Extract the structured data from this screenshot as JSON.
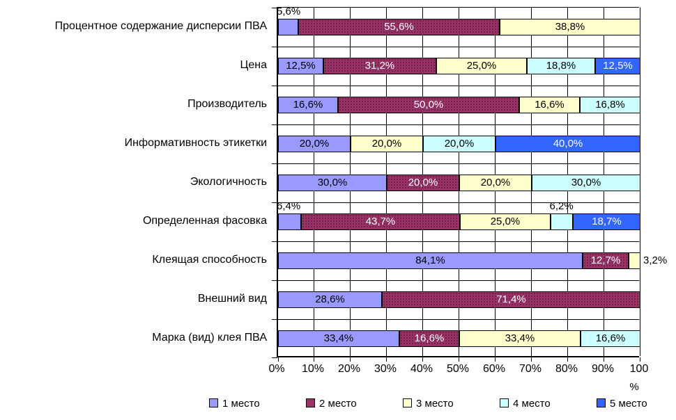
{
  "chart_data": {
    "type": "bar",
    "subtype": "horizontal-stacked",
    "title": "",
    "xlabel": "",
    "ylabel": "",
    "x_axis_unit": "%",
    "xlim": [
      0,
      100
    ],
    "grid": "both",
    "legend_position": "bottom",
    "x_ticks": [
      "0%",
      "10%",
      "20%",
      "30%",
      "40%",
      "50%",
      "60%",
      "70%",
      "80%",
      "90%",
      "100"
    ],
    "categories": [
      "Процентное содержание дисперсии ПВА",
      "Цена",
      "Производитель",
      "Информативность этикетки",
      "Экологичность",
      "Определенная фасовка",
      "Клеящая способность",
      "Внешний вид",
      "Марка (вид) клея ПВА"
    ],
    "series": [
      {
        "name": "1 место",
        "color": "#9999FF",
        "values": [
          5.6,
          12.5,
          16.6,
          20.0,
          30.0,
          6.4,
          84.1,
          28.6,
          33.4
        ]
      },
      {
        "name": "2 место",
        "color": "#993366",
        "values": [
          55.6,
          31.2,
          50.0,
          0,
          20.0,
          43.7,
          12.7,
          71.4,
          16.6
        ]
      },
      {
        "name": "3 место",
        "color": "#FFFFCC",
        "values": [
          38.8,
          25.0,
          16.6,
          20.0,
          20.0,
          25.0,
          3.2,
          0,
          33.4
        ]
      },
      {
        "name": "4 место",
        "color": "#CCFFFF",
        "values": [
          0,
          18.8,
          16.8,
          20.0,
          30.0,
          6.2,
          0,
          0,
          16.6
        ]
      },
      {
        "name": "5 место",
        "color": "#3366FF",
        "values": [
          0,
          12.5,
          0,
          40.0,
          0,
          18.7,
          0,
          0,
          0
        ]
      }
    ],
    "data_labels": {
      "decimal_separator": ",",
      "suffix": "%",
      "white_text_series": [
        1,
        4
      ],
      "outside_labels": [
        {
          "row": 0,
          "series": 0,
          "pos": "above"
        },
        {
          "row": 5,
          "series": 0,
          "pos": "above"
        },
        {
          "row": 5,
          "series": 3,
          "pos": "above"
        },
        {
          "row": 6,
          "series": 2,
          "pos": "right"
        }
      ]
    }
  }
}
